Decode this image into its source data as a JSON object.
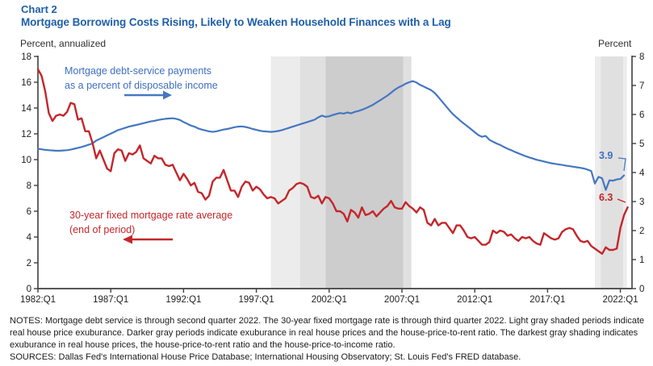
{
  "header": {
    "chart_label": "Chart 2",
    "title": "Mortgage Borrowing Costs Rising, Likely to Weaken Household Finances with a Lag"
  },
  "axes": {
    "left_unit_label": "Percent, annualized",
    "right_unit_label": "Percent"
  },
  "annotations": {
    "blue_line1": "Mortgage debt-service payments",
    "blue_line2": "as a percent of disposable income",
    "blue_arrow_icon": "right-arrow",
    "red_line1": "30-year fixed mortgage rate average",
    "red_line2": "(end of period)",
    "red_arrow_icon": "left-arrow"
  },
  "footer": {
    "notes": "NOTES: Mortgage debt service is through second quarter 2022. The 30-year fixed mortgage rate is through third quarter 2022. Light gray shaded periods indicate real house price exuburance. Darker gray periods indicate exuburance in real house prices and the house-price-to-rent ratio. The darkest gray shading indicates exuburance in real house prices, the house-price-to-rent ratio and the house-price-to-income ratio.",
    "sources": "SOURCES: Dallas Fed's International House Price Database; International Housing Observatory; St. Louis Fed's FRED database."
  },
  "chart_data": {
    "type": "line",
    "title": "Mortgage Borrowing Costs Rising, Likely to Weaken Household Finances with a Lag",
    "x_range": [
      1982.0,
      2022.8
    ],
    "x_tick_start": 1982,
    "x_tick_step_years": 5,
    "x_tick_labels": [
      "1982:Q1",
      "1987:Q1",
      "1992:Q1",
      "1997:Q1",
      "2002:Q1",
      "2007:Q1",
      "2012:Q1",
      "2017:Q1",
      "2022:Q1"
    ],
    "left_axis": {
      "label": "Percent, annualized",
      "min": 0,
      "max": 18,
      "step": 2
    },
    "right_axis": {
      "label": "Percent",
      "min": 0,
      "max": 8,
      "step": 1
    },
    "grid": false,
    "shade_colors": {
      "1": "#ececec",
      "2": "#e0e0e0",
      "3": "#cdcdce"
    },
    "shaded_regions": [
      {
        "from": 1998.0,
        "to": 2000.0,
        "level": 1
      },
      {
        "from": 2000.0,
        "to": 2001.75,
        "level": 2
      },
      {
        "from": 2001.75,
        "to": 2007.1,
        "level": 3
      },
      {
        "from": 2007.1,
        "to": 2007.65,
        "level": 2
      },
      {
        "from": 2020.25,
        "to": 2020.65,
        "level": 1
      },
      {
        "from": 2020.65,
        "to": 2022.2,
        "level": 2
      },
      {
        "from": 2022.2,
        "to": 2022.45,
        "level": 1
      }
    ],
    "series": [
      {
        "name": "Mortgage debt-service payments as a percent of disposable income",
        "axis": "right",
        "color": "#4577c1",
        "start": 1982.0,
        "step": 0.25,
        "end_label": "3.9",
        "values": [
          4.82,
          4.8,
          4.78,
          4.77,
          4.76,
          4.75,
          4.75,
          4.76,
          4.77,
          4.79,
          4.82,
          4.85,
          4.88,
          4.92,
          4.96,
          5.0,
          5.1,
          5.16,
          5.22,
          5.28,
          5.34,
          5.4,
          5.46,
          5.5,
          5.54,
          5.58,
          5.61,
          5.64,
          5.67,
          5.7,
          5.73,
          5.76,
          5.78,
          5.81,
          5.83,
          5.85,
          5.86,
          5.87,
          5.85,
          5.81,
          5.74,
          5.68,
          5.62,
          5.58,
          5.52,
          5.48,
          5.45,
          5.42,
          5.4,
          5.42,
          5.45,
          5.48,
          5.5,
          5.53,
          5.56,
          5.58,
          5.59,
          5.57,
          5.54,
          5.5,
          5.47,
          5.44,
          5.42,
          5.41,
          5.4,
          5.41,
          5.43,
          5.46,
          5.5,
          5.54,
          5.58,
          5.62,
          5.66,
          5.7,
          5.74,
          5.78,
          5.82,
          5.9,
          5.96,
          5.92,
          5.94,
          5.98,
          6.02,
          6.05,
          6.03,
          6.07,
          6.04,
          6.09,
          6.12,
          6.16,
          6.21,
          6.27,
          6.33,
          6.41,
          6.49,
          6.57,
          6.65,
          6.75,
          6.85,
          6.93,
          6.99,
          7.06,
          7.11,
          7.15,
          7.1,
          7.02,
          6.96,
          6.9,
          6.84,
          6.74,
          6.6,
          6.45,
          6.3,
          6.15,
          6.01,
          5.9,
          5.79,
          5.69,
          5.59,
          5.49,
          5.39,
          5.29,
          5.23,
          5.26,
          5.13,
          5.06,
          5.0,
          4.95,
          4.88,
          4.82,
          4.77,
          4.71,
          4.66,
          4.61,
          4.56,
          4.52,
          4.48,
          4.44,
          4.41,
          4.38,
          4.35,
          4.32,
          4.3,
          4.28,
          4.26,
          4.24,
          4.22,
          4.2,
          4.18,
          4.16,
          4.14,
          4.1,
          4.05,
          3.62,
          3.85,
          3.8,
          3.4,
          3.73,
          3.72,
          3.76,
          3.78,
          3.9
        ]
      },
      {
        "name": "30-year fixed mortgage rate average (end of period)",
        "axis": "left",
        "color": "#c4262b",
        "start": 1982.0,
        "step": 0.25,
        "end_label": "6.3",
        "values": [
          17.0,
          16.5,
          15.3,
          13.6,
          13.0,
          13.4,
          13.5,
          13.4,
          13.7,
          14.4,
          14.3,
          13.1,
          13.2,
          12.2,
          12.2,
          11.3,
          10.1,
          10.7,
          10.0,
          9.3,
          9.1,
          10.5,
          10.8,
          10.7,
          9.9,
          10.5,
          10.4,
          10.6,
          11.1,
          10.1,
          9.9,
          9.7,
          10.3,
          10.1,
          10.1,
          9.6,
          9.5,
          9.6,
          9.0,
          8.4,
          8.9,
          8.5,
          8.0,
          8.2,
          7.5,
          7.4,
          6.9,
          7.2,
          8.3,
          8.6,
          8.6,
          9.2,
          8.4,
          7.6,
          7.6,
          7.1,
          7.9,
          8.3,
          8.2,
          7.6,
          7.9,
          7.7,
          7.3,
          7.0,
          7.1,
          7.0,
          6.6,
          6.8,
          7.0,
          7.6,
          7.8,
          8.1,
          8.2,
          8.1,
          7.9,
          7.1,
          7.0,
          7.2,
          6.6,
          7.1,
          7.0,
          6.6,
          6.0,
          6.0,
          5.8,
          5.2,
          6.1,
          5.9,
          5.5,
          6.3,
          5.7,
          5.8,
          6.0,
          5.6,
          5.9,
          6.2,
          6.4,
          6.8,
          6.3,
          6.2,
          6.2,
          6.7,
          6.4,
          6.2,
          5.9,
          6.3,
          6.1,
          5.1,
          4.9,
          5.4,
          4.9,
          5.1,
          5.1,
          4.7,
          4.3,
          4.9,
          4.9,
          4.5,
          4.0,
          3.9,
          4.0,
          3.7,
          3.4,
          3.4,
          3.6,
          4.5,
          4.3,
          4.5,
          4.4,
          4.1,
          4.2,
          3.9,
          3.7,
          4.0,
          3.9,
          4.0,
          3.7,
          3.5,
          3.4,
          4.3,
          4.1,
          3.9,
          3.8,
          3.9,
          4.4,
          4.6,
          4.7,
          4.6,
          4.1,
          3.7,
          3.6,
          3.7,
          3.3,
          3.1,
          2.9,
          2.7,
          3.2,
          3.0,
          3.0,
          3.1,
          4.7,
          5.7,
          6.3
        ]
      }
    ]
  }
}
